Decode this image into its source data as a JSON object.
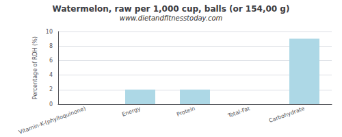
{
  "chart_data": {
    "type": "bar",
    "title": "Watermelon, raw per 1,000 cup, balls (or 154,00 g)",
    "subtitle": "www.dietandfitnesstoday.com",
    "categories": [
      "Vitamin-K-(phylloquinone)",
      "Energy",
      "Protein",
      "Total-Fat",
      "Carbohydrate"
    ],
    "values": [
      0,
      2,
      2,
      0,
      9
    ],
    "color": "#add8e6",
    "ylabel": "Percentage of RDH (%)",
    "ylim": [
      0,
      10
    ],
    "yticks": [
      0,
      2,
      4,
      6,
      8,
      10
    ],
    "grid": true
  }
}
